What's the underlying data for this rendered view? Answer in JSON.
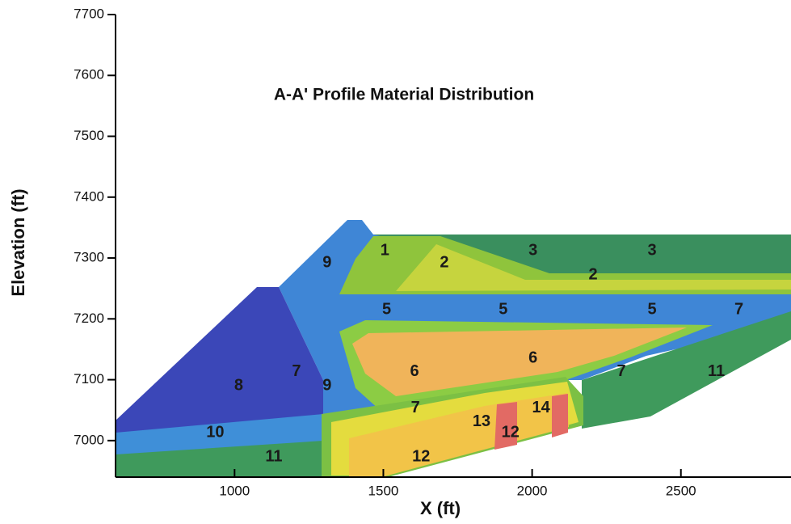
{
  "chart_data": {
    "type": "area",
    "title": "A-A' Profile Material Distribution",
    "x_label": "X (ft)",
    "y_label": "Elevation (ft)",
    "xlim": [
      600,
      2870
    ],
    "ylim": [
      6940,
      7700
    ],
    "xticks": [
      1000,
      1500,
      2000,
      2500
    ],
    "yticks": [
      7000,
      7100,
      7200,
      7300,
      7400,
      7500,
      7600,
      7700
    ],
    "annotations": [
      {
        "text": "1",
        "x": 1505,
        "y": 7312
      },
      {
        "text": "2",
        "x": 1705,
        "y": 7292
      },
      {
        "text": "3",
        "x": 2003,
        "y": 7312
      },
      {
        "text": "3",
        "x": 2403,
        "y": 7312
      },
      {
        "text": "2",
        "x": 2205,
        "y": 7272
      },
      {
        "text": "9",
        "x": 1311,
        "y": 7292
      },
      {
        "text": "5",
        "x": 1511,
        "y": 7215
      },
      {
        "text": "5",
        "x": 1903,
        "y": 7215
      },
      {
        "text": "5",
        "x": 2403,
        "y": 7215
      },
      {
        "text": "7",
        "x": 2695,
        "y": 7215
      },
      {
        "text": "6",
        "x": 1605,
        "y": 7113
      },
      {
        "text": "6",
        "x": 2003,
        "y": 7135
      },
      {
        "text": "7",
        "x": 2300,
        "y": 7113
      },
      {
        "text": "11",
        "x": 2619,
        "y": 7113
      },
      {
        "text": "8",
        "x": 1014,
        "y": 7090
      },
      {
        "text": "7",
        "x": 1208,
        "y": 7113
      },
      {
        "text": "9",
        "x": 1311,
        "y": 7090
      },
      {
        "text": "7",
        "x": 1608,
        "y": 7053
      },
      {
        "text": "13",
        "x": 1830,
        "y": 7031
      },
      {
        "text": "14",
        "x": 2030,
        "y": 7053
      },
      {
        "text": "12",
        "x": 1927,
        "y": 7013
      },
      {
        "text": "12",
        "x": 1627,
        "y": 6973
      },
      {
        "text": "10",
        "x": 935,
        "y": 7013
      },
      {
        "text": "11",
        "x": 1132,
        "y": 6973
      }
    ]
  }
}
